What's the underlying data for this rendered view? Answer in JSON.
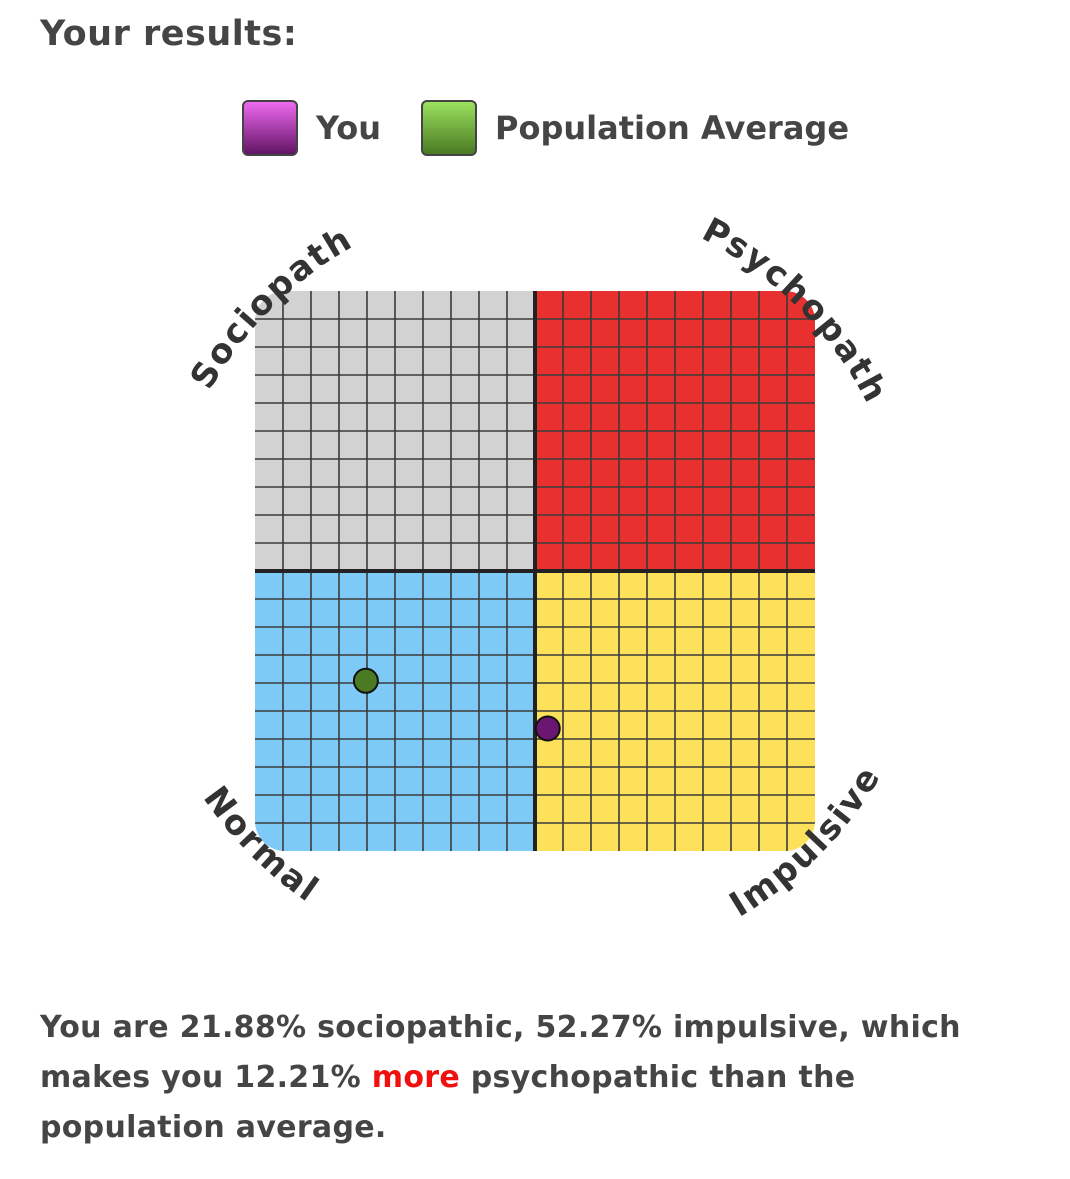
{
  "heading": "Your results:",
  "legend": [
    {
      "label": "You",
      "color_top": "#ee6af0",
      "color_bottom": "#611464"
    },
    {
      "label": "Population Average",
      "color_top": "#9be15e",
      "color_bottom": "#4a7a23"
    }
  ],
  "chart_data": {
    "type": "scatter",
    "title": "",
    "xlabel": "",
    "ylabel": "",
    "xlim": [
      0,
      100
    ],
    "ylim": [
      0,
      100
    ],
    "grid": true,
    "grid_divisions": 20,
    "corner_labels": {
      "top_left": "Sociopath",
      "top_right": "Psychopath",
      "bottom_left": "Normal",
      "bottom_right": "Impulsive"
    },
    "quadrant_colors": {
      "top_left": "#d2d2d2",
      "top_right": "#e8302e",
      "bottom_left": "#7ecaf6",
      "bottom_right": "#fde15a"
    },
    "series": [
      {
        "name": "You",
        "x": 52.27,
        "y": 21.88,
        "color": "#6b1670"
      },
      {
        "name": "Population Average",
        "x": 19.8,
        "y": 30.4,
        "color": "#4a7a23"
      }
    ]
  },
  "summary": {
    "part1": "You are 21.88% sociopathic, 52.27% impulsive, which makes you 12.21% ",
    "highlight": "more",
    "highlight_color": "#f01010",
    "part2": " psychopathic than the population average."
  }
}
